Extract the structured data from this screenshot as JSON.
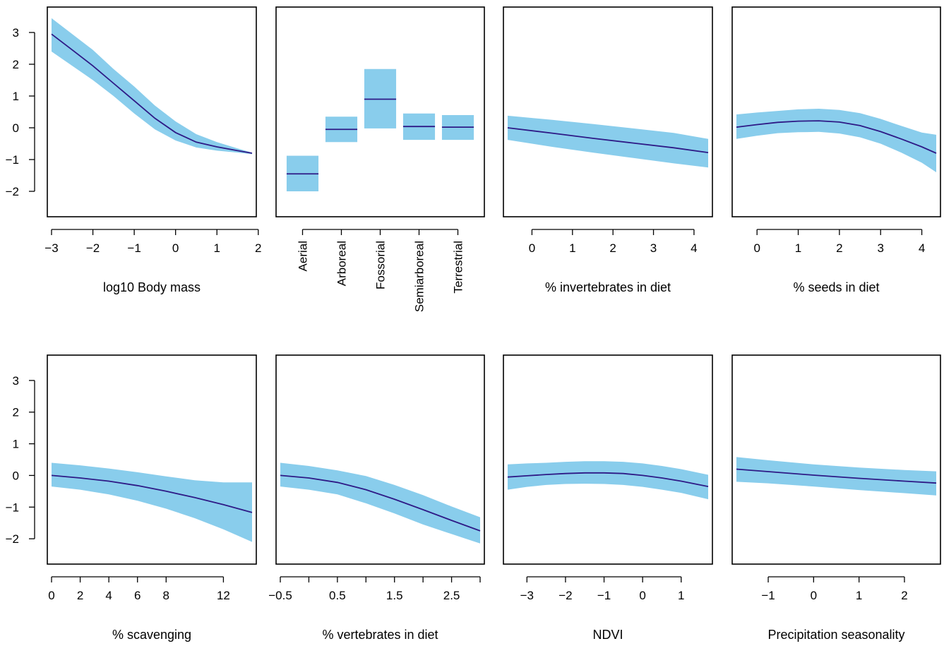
{
  "style": {
    "band_color": "#89cdec",
    "line_color": "#2e1a86",
    "frame_color": "#000000"
  },
  "chart_data": [
    {
      "type": "line",
      "xlabel": "log10 Body mass",
      "ylim": [
        -2.8,
        3.8
      ],
      "xlim": [
        -3.0,
        1.85
      ],
      "xticks": [
        -3,
        -2,
        -1,
        0,
        1,
        2
      ],
      "xtick_labels": [
        "−3",
        "−2",
        "−1",
        "0",
        "1",
        "2"
      ],
      "yticks": [
        -2,
        -1,
        0,
        1,
        2,
        3
      ],
      "ytick_labels": [
        "−2",
        "−1",
        "0",
        "1",
        "2",
        "3"
      ],
      "show_y_axis": true,
      "x": [
        -3.0,
        -2.5,
        -2.0,
        -1.5,
        -1.0,
        -0.5,
        0.0,
        0.5,
        1.0,
        1.5,
        1.85
      ],
      "fit": [
        2.95,
        2.45,
        1.95,
        1.4,
        0.85,
        0.3,
        -0.15,
        -0.45,
        -0.6,
        -0.72,
        -0.8
      ],
      "lower": [
        2.4,
        1.95,
        1.5,
        1.0,
        0.45,
        -0.05,
        -0.4,
        -0.62,
        -0.72,
        -0.78,
        -0.83
      ],
      "upper": [
        3.45,
        2.95,
        2.45,
        1.85,
        1.3,
        0.7,
        0.2,
        -0.2,
        -0.45,
        -0.65,
        -0.78
      ]
    },
    {
      "type": "bar",
      "xlabel": "",
      "ylim": [
        -2.8,
        3.8
      ],
      "categories": [
        "Aerial",
        "Arboreal",
        "Fossorial",
        "Semiarboreal",
        "Terrestrial"
      ],
      "fit": [
        -1.45,
        -0.05,
        0.9,
        0.04,
        0.02
      ],
      "lower": [
        -2.0,
        -0.45,
        -0.02,
        -0.38,
        -0.38
      ],
      "upper": [
        -0.88,
        0.35,
        1.85,
        0.45,
        0.4
      ],
      "show_y_axis": false
    },
    {
      "type": "line",
      "xlabel": "% invertebrates in diet",
      "ylim": [
        -2.8,
        3.8
      ],
      "xlim": [
        -0.6,
        4.35
      ],
      "xticks": [
        0,
        1,
        2,
        3,
        4
      ],
      "xtick_labels": [
        "0",
        "1",
        "2",
        "3",
        "4"
      ],
      "show_y_axis": false,
      "x": [
        -0.6,
        0.5,
        1.5,
        2.5,
        3.5,
        4.35
      ],
      "fit": [
        0.0,
        -0.17,
        -0.33,
        -0.48,
        -0.63,
        -0.78
      ],
      "lower": [
        -0.38,
        -0.6,
        -0.78,
        -0.95,
        -1.12,
        -1.25
      ],
      "upper": [
        0.38,
        0.25,
        0.12,
        -0.02,
        -0.16,
        -0.35
      ]
    },
    {
      "type": "line",
      "xlabel": "% seeds in diet",
      "ylim": [
        -2.8,
        3.8
      ],
      "xlim": [
        -0.5,
        4.35
      ],
      "xticks": [
        0,
        1,
        2,
        3,
        4
      ],
      "xtick_labels": [
        "0",
        "1",
        "2",
        "3",
        "4"
      ],
      "show_y_axis": false,
      "x": [
        -0.5,
        0.0,
        0.5,
        1.0,
        1.5,
        2.0,
        2.5,
        3.0,
        3.5,
        4.0,
        4.35
      ],
      "fit": [
        0.02,
        0.1,
        0.17,
        0.21,
        0.22,
        0.18,
        0.07,
        -0.12,
        -0.35,
        -0.6,
        -0.8
      ],
      "lower": [
        -0.35,
        -0.25,
        -0.17,
        -0.14,
        -0.13,
        -0.18,
        -0.3,
        -0.5,
        -0.78,
        -1.1,
        -1.4
      ],
      "upper": [
        0.42,
        0.48,
        0.53,
        0.58,
        0.6,
        0.56,
        0.46,
        0.28,
        0.06,
        -0.15,
        -0.22
      ]
    },
    {
      "type": "line",
      "xlabel": "% scavenging",
      "ylim": [
        -2.8,
        3.8
      ],
      "xlim": [
        0,
        14
      ],
      "xticks": [
        0,
        2,
        4,
        6,
        8,
        12
      ],
      "xtick_labels": [
        "0",
        "2",
        "4",
        "6",
        "8",
        "12"
      ],
      "yticks": [
        -2,
        -1,
        0,
        1,
        2,
        3
      ],
      "ytick_labels": [
        "−2",
        "−1",
        "0",
        "1",
        "2",
        "3"
      ],
      "show_y_axis": true,
      "x": [
        0,
        2,
        4,
        6,
        8,
        10,
        12,
        14
      ],
      "fit": [
        0.0,
        -0.08,
        -0.18,
        -0.32,
        -0.5,
        -0.7,
        -0.92,
        -1.17
      ],
      "lower": [
        -0.35,
        -0.45,
        -0.6,
        -0.8,
        -1.05,
        -1.35,
        -1.7,
        -2.1
      ],
      "upper": [
        0.4,
        0.32,
        0.22,
        0.1,
        -0.03,
        -0.15,
        -0.22,
        -0.22
      ]
    },
    {
      "type": "line",
      "xlabel": "% vertebrates in diet",
      "ylim": [
        -2.8,
        3.8
      ],
      "xlim": [
        -0.5,
        3.0
      ],
      "xticks": [
        -0.5,
        0,
        0.5,
        1,
        1.5,
        2,
        2.5,
        3
      ],
      "xtick_labels": [
        "−0.5",
        "",
        "0.5",
        "",
        "1.5",
        "",
        "2.5",
        ""
      ],
      "show_y_axis": false,
      "x": [
        -0.5,
        0.0,
        0.5,
        1.0,
        1.5,
        2.0,
        2.5,
        3.0
      ],
      "fit": [
        0.0,
        -0.08,
        -0.22,
        -0.45,
        -0.75,
        -1.08,
        -1.42,
        -1.75
      ],
      "lower": [
        -0.35,
        -0.45,
        -0.6,
        -0.88,
        -1.2,
        -1.55,
        -1.85,
        -2.15
      ],
      "upper": [
        0.4,
        0.3,
        0.16,
        -0.02,
        -0.3,
        -0.62,
        -0.98,
        -1.32
      ]
    },
    {
      "type": "line",
      "xlabel": "NDVI",
      "ylim": [
        -2.8,
        3.8
      ],
      "xlim": [
        -3.5,
        1.7
      ],
      "xticks": [
        -3,
        -2,
        -1,
        0,
        1
      ],
      "xtick_labels": [
        "−3",
        "−2",
        "−1",
        "0",
        "1"
      ],
      "show_y_axis": false,
      "x": [
        -3.5,
        -3.0,
        -2.5,
        -2.0,
        -1.5,
        -1.0,
        -0.5,
        0.0,
        0.5,
        1.0,
        1.7
      ],
      "fit": [
        -0.05,
        -0.01,
        0.03,
        0.06,
        0.08,
        0.08,
        0.06,
        0.0,
        -0.08,
        -0.18,
        -0.35
      ],
      "lower": [
        -0.45,
        -0.36,
        -0.3,
        -0.27,
        -0.26,
        -0.27,
        -0.3,
        -0.36,
        -0.45,
        -0.55,
        -0.75
      ],
      "upper": [
        0.35,
        0.38,
        0.4,
        0.43,
        0.45,
        0.45,
        0.43,
        0.38,
        0.3,
        0.2,
        0.02
      ]
    },
    {
      "type": "line",
      "xlabel": "Precipitation seasonality",
      "ylim": [
        -2.8,
        3.8
      ],
      "xlim": [
        -1.7,
        2.7
      ],
      "xticks": [
        -1,
        0,
        1,
        2
      ],
      "xtick_labels": [
        "−1",
        "0",
        "1",
        "2"
      ],
      "show_y_axis": false,
      "x": [
        -1.7,
        -1.0,
        0.0,
        1.0,
        2.0,
        2.7
      ],
      "fit": [
        0.2,
        0.12,
        0.01,
        -0.09,
        -0.18,
        -0.24
      ],
      "lower": [
        -0.2,
        -0.25,
        -0.35,
        -0.46,
        -0.56,
        -0.63
      ],
      "upper": [
        0.58,
        0.48,
        0.35,
        0.25,
        0.17,
        0.13
      ]
    }
  ]
}
